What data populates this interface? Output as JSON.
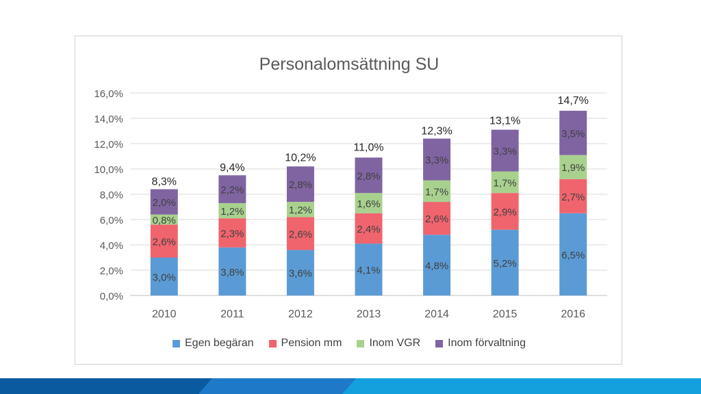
{
  "chart_data": {
    "type": "stacked-bar",
    "title": "Personalomsättning SU",
    "xlabel": "",
    "ylabel": "",
    "ylim": [
      0,
      16
    ],
    "yticks": [
      0,
      2,
      4,
      6,
      8,
      10,
      12,
      14,
      16
    ],
    "ytick_labels": [
      "0,0%",
      "2,0%",
      "4,0%",
      "6,0%",
      "8,0%",
      "10,0%",
      "12,0%",
      "14,0%",
      "16,0%"
    ],
    "grid": true,
    "legend_position": "bottom",
    "categories": [
      "2010",
      "2011",
      "2012",
      "2013",
      "2014",
      "2015",
      "2016"
    ],
    "series": [
      {
        "name": "Egen begäran",
        "color": "#5b9bd5",
        "values": [
          3.0,
          3.8,
          3.6,
          4.1,
          4.8,
          5.2,
          6.5
        ],
        "labels": [
          "3,0%",
          "3,8%",
          "3,6%",
          "4,1%",
          "4,8%",
          "5,2%",
          "6,5%"
        ]
      },
      {
        "name": "Pension mm",
        "color": "#f0646e",
        "values": [
          2.6,
          2.3,
          2.6,
          2.4,
          2.6,
          2.9,
          2.7
        ],
        "labels": [
          "2,6%",
          "2,3%",
          "2,6%",
          "2,4%",
          "2,6%",
          "2,9%",
          "2,7%"
        ]
      },
      {
        "name": "Inom VGR",
        "color": "#a9d18e",
        "values": [
          0.8,
          1.2,
          1.2,
          1.6,
          1.7,
          1.7,
          1.9
        ],
        "labels": [
          "0,8%",
          "1,2%",
          "1,2%",
          "1,6%",
          "1,7%",
          "1,7%",
          "1,9%"
        ]
      },
      {
        "name": "Inom förvaltning",
        "color": "#8064a2",
        "values": [
          2.0,
          2.2,
          2.8,
          2.8,
          3.3,
          3.3,
          3.5
        ],
        "labels": [
          "2,0%",
          "2,2%",
          "2,8%",
          "2,8%",
          "3,3%",
          "3,3%",
          "3,5%"
        ]
      }
    ],
    "totals": [
      8.3,
      9.4,
      10.2,
      11.0,
      12.3,
      13.1,
      14.7
    ],
    "total_labels": [
      "8,3%",
      "9,4%",
      "10,2%",
      "11,0%",
      "12,3%",
      "13,1%",
      "14,7%"
    ]
  },
  "theme": {
    "grid_color": "#d9d9d9",
    "axis_text_color": "#595959",
    "label_color": "#404040",
    "footer_colors": [
      "#0a5aa0",
      "#1e7ac8",
      "#14a0dc"
    ]
  }
}
